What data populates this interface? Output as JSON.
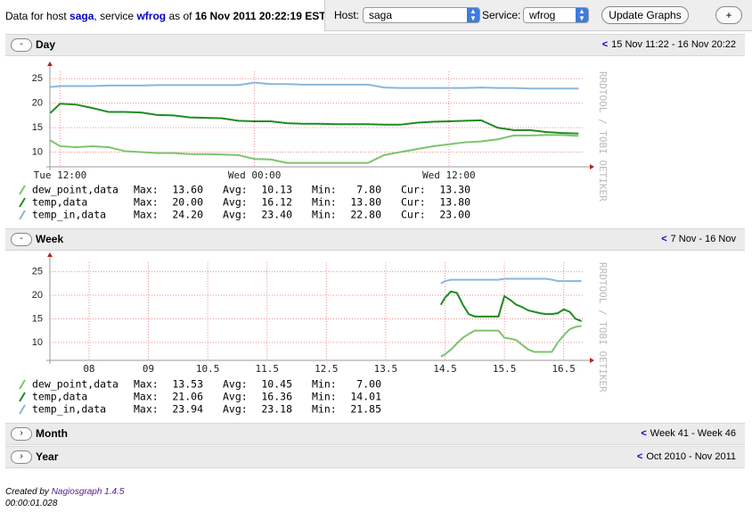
{
  "header": {
    "prefix": "Data for host",
    "host": "saga",
    "mid": ", service",
    "service": "wfrog",
    "asof": "as of",
    "timestamp": "16 Nov 2011 20:22:19 EST"
  },
  "controls": {
    "host_label": "Host:",
    "host_value": "saga",
    "service_label": "Service:",
    "service_value": "wfrog",
    "update": "Update Graphs",
    "add": "+"
  },
  "sections": [
    {
      "toggle": "-",
      "title": "Day",
      "nav": "<",
      "range": "15 Nov 11:22 - 16 Nov 20:22"
    },
    {
      "toggle": "-",
      "title": "Week",
      "nav": "<",
      "range": "7 Nov - 16 Nov"
    },
    {
      "toggle": "›",
      "title": "Month",
      "nav": "<",
      "range": "Week 41 - Week 46"
    },
    {
      "toggle": "›",
      "title": "Year",
      "nav": "<",
      "range": "Oct 2010 - Nov 2011"
    }
  ],
  "chart_data": [
    {
      "type": "line",
      "watermark": "RRDTOOL / TOBI OETIKER",
      "xlim": [
        11.37,
        44.37
      ],
      "xticks": [
        {
          "value": 12,
          "label": "Tue 12:00"
        },
        {
          "value": 24,
          "label": "Wed 00:00"
        },
        {
          "value": 36,
          "label": "Wed 12:00"
        }
      ],
      "ylim": [
        7,
        26.5
      ],
      "yticks": [
        10,
        15,
        20,
        25
      ],
      "grid": true,
      "x": [
        11.4,
        12,
        13,
        14,
        15,
        16,
        17,
        18,
        19,
        20,
        21,
        22,
        23,
        24,
        25,
        26,
        27,
        28,
        29,
        30,
        31,
        32,
        33,
        34,
        35,
        36,
        37,
        38,
        39,
        40,
        41,
        42,
        43,
        44
      ],
      "series": [
        {
          "name": "dew_point,data",
          "color": "#7cc46c",
          "values": [
            12.4,
            11.2,
            11.0,
            11.2,
            11.0,
            10.2,
            10.0,
            9.8,
            9.8,
            9.6,
            9.6,
            9.5,
            9.4,
            8.6,
            8.5,
            7.8,
            7.8,
            7.8,
            7.8,
            7.8,
            7.8,
            9.4,
            10.0,
            10.6,
            11.2,
            11.6,
            12.0,
            12.2,
            12.6,
            13.4,
            13.4,
            13.5,
            13.5,
            13.3
          ]
        },
        {
          "name": "temp,data",
          "color": "#1f8c1f",
          "values": [
            18.0,
            19.9,
            19.7,
            19.0,
            18.2,
            18.2,
            18.1,
            17.6,
            17.5,
            17.1,
            17.0,
            16.9,
            16.4,
            16.3,
            16.3,
            15.9,
            15.8,
            15.8,
            15.7,
            15.7,
            15.7,
            15.6,
            15.6,
            16.0,
            16.2,
            16.3,
            16.4,
            16.5,
            15.0,
            14.5,
            14.5,
            14.1,
            13.9,
            13.8
          ]
        },
        {
          "name": "temp_in,data",
          "color": "#8ab6dc",
          "values": [
            23.3,
            23.5,
            23.5,
            23.5,
            23.6,
            23.6,
            23.6,
            23.7,
            23.7,
            23.7,
            23.7,
            23.7,
            23.7,
            24.2,
            23.9,
            23.9,
            23.8,
            23.8,
            23.8,
            23.8,
            23.8,
            23.2,
            23.1,
            23.1,
            23.1,
            23.1,
            23.1,
            23.2,
            23.1,
            23.1,
            23.0,
            23.0,
            23.0,
            23.0
          ]
        }
      ],
      "stat_labels": [
        "Max:",
        "Avg:",
        "Min:",
        "Cur:"
      ],
      "stats": [
        [
          "13.60",
          "10.13",
          "7.80",
          "13.30"
        ],
        [
          "20.00",
          "16.12",
          "13.80",
          "13.80"
        ],
        [
          "24.20",
          "23.40",
          "22.80",
          "23.00"
        ]
      ]
    },
    {
      "type": "line",
      "watermark": "RRDTOOL / TOBI OETIKER",
      "xlim": [
        7.84,
        16.85
      ],
      "xticks": [
        {
          "value": 8.5,
          "label": "08"
        },
        {
          "value": 9.5,
          "label": "09"
        },
        10.5,
        11.5,
        12.5,
        13.5,
        14.5,
        15.5,
        16.5
      ],
      "ylim": [
        6.2,
        27
      ],
      "yticks": [
        10,
        15,
        20,
        25
      ],
      "grid": true,
      "x": [
        14.43,
        14.5,
        14.6,
        14.7,
        14.8,
        14.9,
        15.0,
        15.1,
        15.2,
        15.3,
        15.4,
        15.5,
        15.6,
        15.7,
        15.8,
        15.9,
        16.0,
        16.1,
        16.2,
        16.3,
        16.4,
        16.5,
        16.6,
        16.7,
        16.8
      ],
      "series": [
        {
          "name": "dew_point,data",
          "color": "#7cc46c",
          "values": [
            7.0,
            7.5,
            8.5,
            9.8,
            11.0,
            11.8,
            12.5,
            12.5,
            12.5,
            12.5,
            12.5,
            11.0,
            10.8,
            10.5,
            9.5,
            8.5,
            8.0,
            8.0,
            8.0,
            8.0,
            10.0,
            11.5,
            12.8,
            13.3,
            13.5
          ]
        },
        {
          "name": "temp,data",
          "color": "#1f8c1f",
          "values": [
            18.0,
            19.5,
            20.8,
            20.5,
            18.0,
            16.0,
            15.5,
            15.5,
            15.5,
            15.5,
            15.5,
            19.8,
            19.0,
            18.0,
            17.5,
            16.8,
            16.5,
            16.2,
            16.0,
            16.0,
            16.2,
            17.0,
            16.5,
            15.0,
            14.5
          ]
        },
        {
          "name": "temp_in,data",
          "color": "#8ab6dc",
          "values": [
            22.5,
            23.0,
            23.3,
            23.3,
            23.3,
            23.3,
            23.3,
            23.3,
            23.3,
            23.3,
            23.3,
            23.5,
            23.5,
            23.5,
            23.5,
            23.5,
            23.5,
            23.5,
            23.5,
            23.3,
            23.0,
            23.0,
            23.0,
            23.0,
            23.0
          ]
        }
      ],
      "stat_labels": [
        "Max:",
        "Avg:",
        "Min:"
      ],
      "stats": [
        [
          "13.53",
          "10.45",
          "7.00"
        ],
        [
          "21.06",
          "16.36",
          "14.01"
        ],
        [
          "23.94",
          "23.18",
          "21.85"
        ]
      ]
    }
  ],
  "footer": {
    "created": "Created by",
    "link": "Nagiosgraph 1.4.5",
    "elapsed": "00:00:01.028"
  }
}
